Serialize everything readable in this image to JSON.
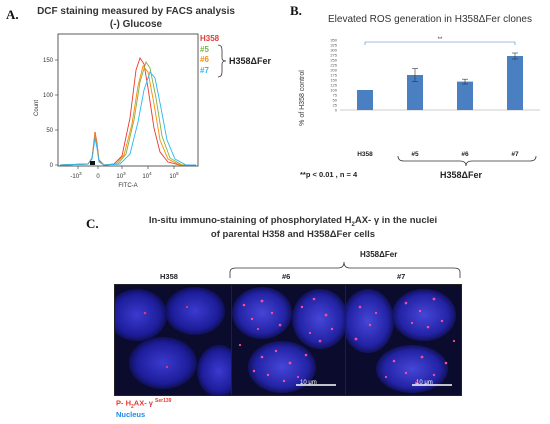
{
  "panelA": {
    "letter": "A.",
    "title_line1": "DCF staining measured by FACS analysis",
    "title_line2": "(-) Glucose",
    "ylabel": "Count",
    "xlabel": "FITC-A",
    "y_ticks": [
      "150",
      "100",
      "50",
      "0"
    ],
    "legend": [
      {
        "label": "H358",
        "color": "#e53935"
      },
      {
        "label": "#5",
        "color": "#7cb342"
      },
      {
        "label": "#6",
        "color": "#fb8c00"
      },
      {
        "label": "#7",
        "color": "#29b6f6"
      }
    ],
    "group_label": "H358ΔFer"
  },
  "chart_data": {
    "type": "bar",
    "title": "Elevated ROS generation in H358ΔFer clones",
    "ylabel": "% of H358 control",
    "categories": [
      "H358",
      "#5",
      "#6",
      "#7"
    ],
    "values": [
      100,
      175,
      142,
      270
    ],
    "errors": [
      0,
      32,
      12,
      15
    ],
    "ylim": [
      0,
      350
    ],
    "y_ticks": [
      0,
      25,
      50,
      75,
      100,
      125,
      150,
      175,
      200,
      225,
      250,
      275,
      300,
      325,
      350
    ],
    "significance": "**",
    "color": "#4a7fc1"
  },
  "panelB": {
    "letter": "B.",
    "note": "**p < 0.01 , n = 4",
    "group_label": "H358ΔFer"
  },
  "panelC": {
    "letter": "C.",
    "title_line1": "In-situ immuno-staining of phosphorylated H2AX- γ in the nuclei",
    "title_line2": "of parental H358 and H358ΔFer cells",
    "group_label": "H358ΔFer",
    "images": [
      {
        "label": "H358"
      },
      {
        "label": "#6",
        "scalebar": "10 μm"
      },
      {
        "label": "#7",
        "scalebar": "10 μm"
      }
    ],
    "legend_red": "P- H2AX- γ",
    "legend_red_sup": "Ser139",
    "legend_blue": "Nucleus",
    "red_color": "#e53935",
    "blue_color": "#1e88e5"
  }
}
